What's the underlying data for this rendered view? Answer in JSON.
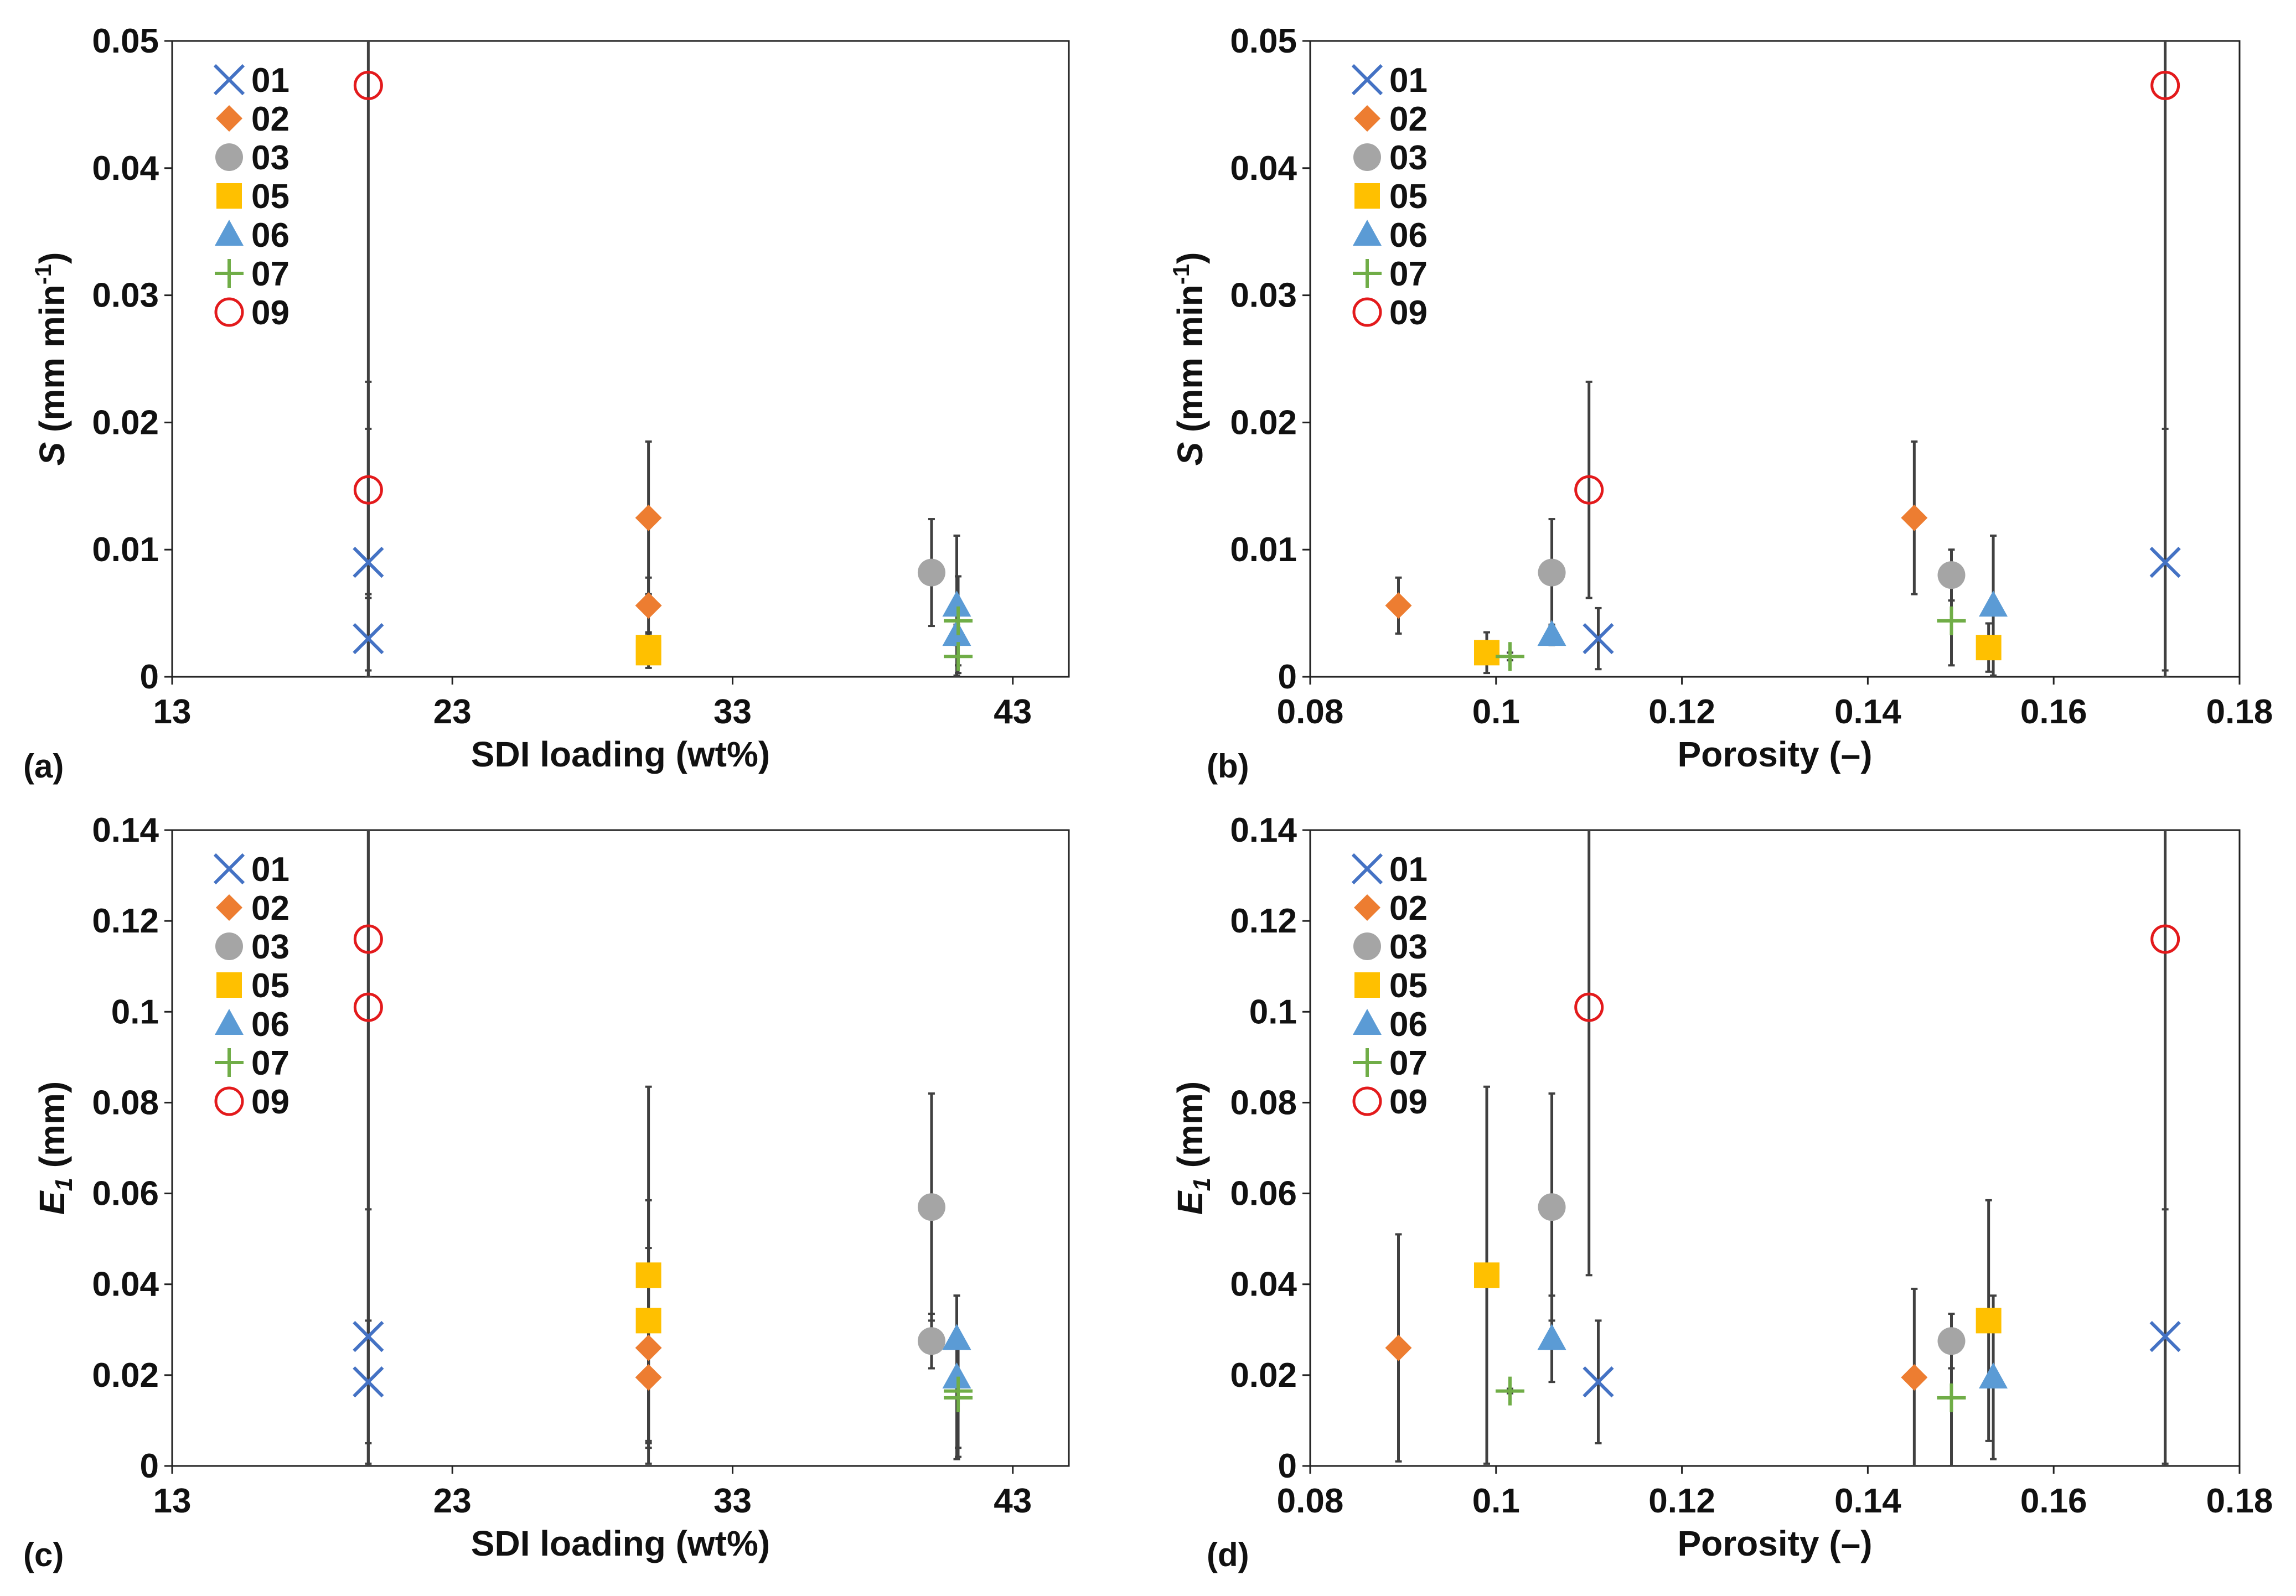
{
  "chart_data": [
    {
      "panel": "(a)",
      "type": "scatter",
      "xlabel": "SDI loading (wt%)",
      "ylabel_main": "S",
      "ylabel_unit_pre": " (mm min",
      "ylabel_sup": "-1",
      "ylabel_unit_post": ")",
      "xlim": [
        13,
        45
      ],
      "ylim": [
        0,
        0.05
      ],
      "xticks": [
        "13",
        "23",
        "33",
        "43"
      ],
      "yticks": [
        "0",
        "0.01",
        "0.02",
        "0.03",
        "0.04",
        "0.05"
      ],
      "legend": [
        "01",
        "02",
        "03",
        "05",
        "06",
        "07",
        "09"
      ],
      "series": [
        {
          "name": "01",
          "points": [
            {
              "x": 20,
              "y": 0.009,
              "err": 0.0105
            },
            {
              "x": 20,
              "y": 0.003,
              "err": 0.0035
            }
          ]
        },
        {
          "name": "02",
          "points": [
            {
              "x": 30,
              "y": 0.0125,
              "err": 0.006
            },
            {
              "x": 30,
              "y": 0.0056,
              "err": 0.0022
            }
          ]
        },
        {
          "name": "03",
          "points": [
            {
              "x": 40.1,
              "y": 0.0082,
              "err": 0.0042
            }
          ]
        },
        {
          "name": "05",
          "points": [
            {
              "x": 30,
              "y": 0.0023,
              "err": 0.0012
            },
            {
              "x": 30,
              "y": 0.0019,
              "err": 0.0012
            }
          ]
        },
        {
          "name": "06",
          "points": [
            {
              "x": 41,
              "y": 0.0056,
              "err": 0.0055
            },
            {
              "x": 41,
              "y": 0.0033,
              "err": 0.0008
            }
          ]
        },
        {
          "name": "07",
          "points": [
            {
              "x": 41.05,
              "y": 0.0044,
              "err": 0.0035
            },
            {
              "x": 41.05,
              "y": 0.0016,
              "err": 0.0013
            }
          ]
        },
        {
          "name": "09",
          "points": [
            {
              "x": 20,
              "y": 0.0465,
              "err": 0.046
            },
            {
              "x": 20,
              "y": 0.0147,
              "err": 0.0085
            }
          ]
        }
      ]
    },
    {
      "panel": "(b)",
      "type": "scatter",
      "xlabel": "Porosity (–)",
      "ylabel_main": "S",
      "ylabel_unit_pre": " (mm min",
      "ylabel_sup": "-1",
      "ylabel_unit_post": ")",
      "xlim": [
        0.08,
        0.18
      ],
      "ylim": [
        0,
        0.05
      ],
      "xticks": [
        "0.08",
        "0.1",
        "0.12",
        "0.14",
        "0.16",
        "0.18"
      ],
      "yticks": [
        "0",
        "0.01",
        "0.02",
        "0.03",
        "0.04",
        "0.05"
      ],
      "legend": [
        "01",
        "02",
        "03",
        "05",
        "06",
        "07",
        "09"
      ],
      "series": [
        {
          "name": "01",
          "points": [
            {
              "x": 0.172,
              "y": 0.009,
              "err": 0.0105
            },
            {
              "x": 0.111,
              "y": 0.003,
              "err": 0.0024
            }
          ]
        },
        {
          "name": "02",
          "points": [
            {
              "x": 0.145,
              "y": 0.0125,
              "err": 0.006
            },
            {
              "x": 0.0895,
              "y": 0.0056,
              "err": 0.0022
            }
          ]
        },
        {
          "name": "03",
          "points": [
            {
              "x": 0.106,
              "y": 0.0082,
              "err": 0.0042
            },
            {
              "x": 0.149,
              "y": 0.008,
              "err": 0.002
            }
          ]
        },
        {
          "name": "05",
          "points": [
            {
              "x": 0.099,
              "y": 0.0019,
              "err": 0.0016
            },
            {
              "x": 0.153,
              "y": 0.0023,
              "err": 0.0019
            }
          ]
        },
        {
          "name": "06",
          "points": [
            {
              "x": 0.106,
              "y": 0.0033,
              "err": 0.0008
            },
            {
              "x": 0.1535,
              "y": 0.0056,
              "err": 0.0055
            }
          ]
        },
        {
          "name": "07",
          "points": [
            {
              "x": 0.1015,
              "y": 0.0016,
              "err": 0.0003
            },
            {
              "x": 0.149,
              "y": 0.0044,
              "err": 0.0035
            }
          ]
        },
        {
          "name": "09",
          "points": [
            {
              "x": 0.11,
              "y": 0.0147,
              "err": 0.0085
            },
            {
              "x": 0.172,
              "y": 0.0465,
              "err": 0.046
            }
          ]
        }
      ]
    },
    {
      "panel": "(c)",
      "type": "scatter",
      "xlabel": "SDI loading (wt%)",
      "ylabel_main": "E",
      "ylabel_sub": "1",
      "ylabel_unit_post": " (mm)",
      "xlim": [
        13,
        45
      ],
      "ylim": [
        0,
        0.14
      ],
      "xticks": [
        "13",
        "23",
        "33",
        "43"
      ],
      "yticks": [
        "0",
        "0.02",
        "0.04",
        "0.06",
        "0.08",
        "0.1",
        "0.12",
        "0.14"
      ],
      "legend": [
        "01",
        "02",
        "03",
        "05",
        "06",
        "07",
        "09"
      ],
      "series": [
        {
          "name": "01",
          "points": [
            {
              "x": 20,
              "y": 0.0285,
              "err": 0.028
            },
            {
              "x": 20,
              "y": 0.0185,
              "err": 0.0135
            }
          ]
        },
        {
          "name": "02",
          "points": [
            {
              "x": 30,
              "y": 0.026,
              "err": 0.022
            },
            {
              "x": 30,
              "y": 0.0195,
              "err": 0.0145
            }
          ]
        },
        {
          "name": "03",
          "points": [
            {
              "x": 40.1,
              "y": 0.057,
              "err": 0.025
            },
            {
              "x": 40.1,
              "y": 0.0275,
              "err": 0.006
            }
          ]
        },
        {
          "name": "05",
          "points": [
            {
              "x": 30,
              "y": 0.042,
              "err": 0.0415
            },
            {
              "x": 30,
              "y": 0.032,
              "err": 0.0265
            }
          ]
        },
        {
          "name": "06",
          "points": [
            {
              "x": 41,
              "y": 0.028,
              "err": 0.0095
            },
            {
              "x": 41,
              "y": 0.0195,
              "err": 0.018
            }
          ]
        },
        {
          "name": "07",
          "points": [
            {
              "x": 41.05,
              "y": 0.0165,
              "err": 0.0125
            },
            {
              "x": 41.05,
              "y": 0.015,
              "err": 0.013
            }
          ]
        },
        {
          "name": "09",
          "points": [
            {
              "x": 20,
              "y": 0.116,
              "err": 0.116
            },
            {
              "x": 20,
              "y": 0.101,
              "err": 0.101
            }
          ]
        }
      ]
    },
    {
      "panel": "(d)",
      "type": "scatter",
      "xlabel": "Porosity (–)",
      "ylabel_main": "E",
      "ylabel_sub": "1",
      "ylabel_unit_post": " (mm)",
      "xlim": [
        0.08,
        0.18
      ],
      "ylim": [
        0,
        0.14
      ],
      "xticks": [
        "0.08",
        "0.1",
        "0.12",
        "0.14",
        "0.16",
        "0.18"
      ],
      "yticks": [
        "0",
        "0.02",
        "0.04",
        "0.06",
        "0.08",
        "0.1",
        "0.12",
        "0.14"
      ],
      "legend": [
        "01",
        "02",
        "03",
        "05",
        "06",
        "07",
        "09"
      ],
      "series": [
        {
          "name": "01",
          "points": [
            {
              "x": 0.172,
              "y": 0.0285,
              "err": 0.028
            },
            {
              "x": 0.111,
              "y": 0.0185,
              "err": 0.0135
            }
          ]
        },
        {
          "name": "02",
          "points": [
            {
              "x": 0.0895,
              "y": 0.026,
              "err": 0.025
            },
            {
              "x": 0.145,
              "y": 0.0195,
              "err": 0.0195
            }
          ]
        },
        {
          "name": "03",
          "points": [
            {
              "x": 0.106,
              "y": 0.057,
              "err": 0.025
            },
            {
              "x": 0.149,
              "y": 0.0275,
              "err": 0.006
            }
          ]
        },
        {
          "name": "05",
          "points": [
            {
              "x": 0.099,
              "y": 0.042,
              "err": 0.0415
            },
            {
              "x": 0.153,
              "y": 0.032,
              "err": 0.0265
            }
          ]
        },
        {
          "name": "06",
          "points": [
            {
              "x": 0.106,
              "y": 0.028,
              "err": 0.0095
            },
            {
              "x": 0.1535,
              "y": 0.0195,
              "err": 0.018
            }
          ]
        },
        {
          "name": "07",
          "points": [
            {
              "x": 0.1015,
              "y": 0.0165,
              "err": 0.0005
            },
            {
              "x": 0.149,
              "y": 0.015,
              "err": 0.015
            }
          ]
        },
        {
          "name": "09",
          "points": [
            {
              "x": 0.11,
              "y": 0.101,
              "err": 0.059
            },
            {
              "x": 0.172,
              "y": 0.116,
              "err": 0.116
            }
          ]
        }
      ]
    }
  ],
  "series_styles": {
    "01": {
      "marker": "x",
      "color": "#4472C4"
    },
    "02": {
      "marker": "diamond",
      "color": "#ED7D31"
    },
    "03": {
      "marker": "circle",
      "color": "#A5A5A5"
    },
    "05": {
      "marker": "square",
      "color": "#FFC000"
    },
    "06": {
      "marker": "triangle",
      "color": "#5B9BD5"
    },
    "07": {
      "marker": "plus",
      "color": "#70AD47"
    },
    "09": {
      "marker": "open-circle",
      "color": "#E31A1C"
    }
  },
  "errorbar_color": "#404040"
}
